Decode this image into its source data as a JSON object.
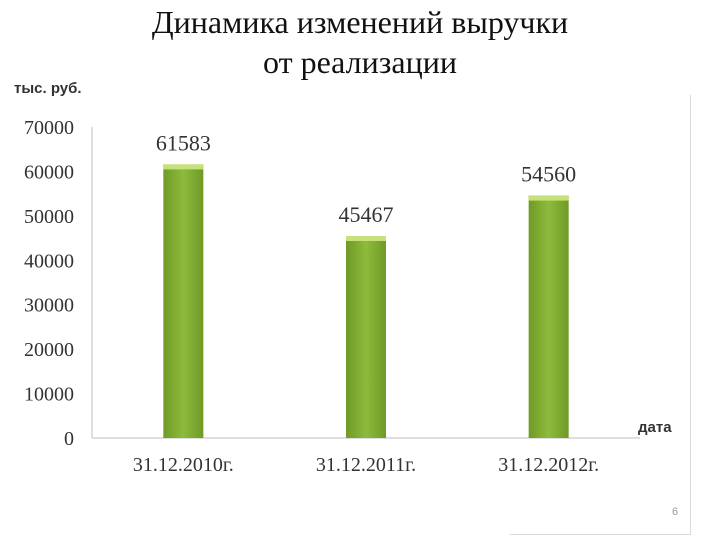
{
  "slide": {
    "title_line1": "Динамика изменений выручки",
    "title_line2": "от реализации",
    "page_number": "6"
  },
  "chart_data": {
    "type": "bar",
    "title": "Динамика изменений выручки от реализации",
    "ylabel": "тыс. руб.",
    "xlabel": "дата",
    "categories": [
      "31.12.2010г.",
      "31.12.2011г.",
      "31.12.2012г."
    ],
    "values": [
      61583,
      45467,
      54560
    ],
    "data_labels": [
      "61583",
      "45467",
      "54560"
    ],
    "ylim": [
      0,
      70000
    ],
    "yticks": [
      0,
      10000,
      20000,
      30000,
      40000,
      50000,
      60000,
      70000
    ],
    "grid": false,
    "legend": "none",
    "bar_color": "#8dbb3c",
    "bar_color_dark": "#6f9a26",
    "bar_top_color": "#c5e27a"
  }
}
